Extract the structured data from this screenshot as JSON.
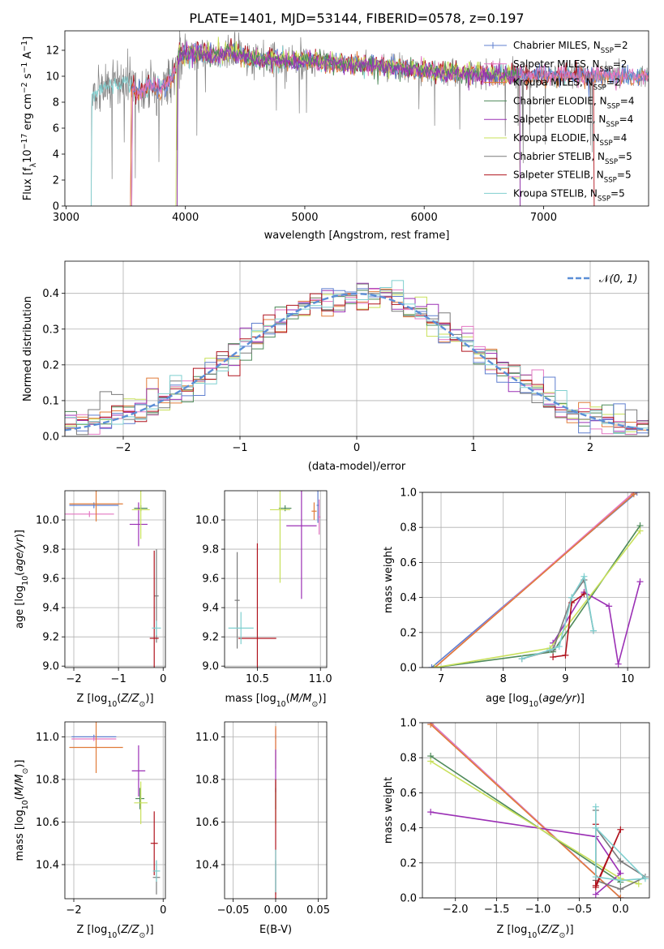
{
  "figure_title": "PLATE=1401, MJD=53144, FIBERID=0578, z=0.197",
  "colors": {
    "Chabrier MILES": "#5f7fcf",
    "Salpeter MILES": "#e377c2",
    "Kroupa MILES": "#e07b39",
    "Chabrier ELODIE": "#4e8a5a",
    "Salpeter ELODIE": "#9b30b5",
    "Kroupa ELODIE": "#c8e05a",
    "Chabrier STELIB": "#7a7a7a",
    "Salpeter STELIB": "#b0141e",
    "Kroupa STELIB": "#7fcfcf"
  },
  "chart_data": [
    {
      "id": "spectrum",
      "type": "line",
      "title": "PLATE=1401, MJD=53144, FIBERID=0578, z=0.197",
      "xlabel": "wavelength [Angstrom, rest frame]",
      "ylabel": "Flux [f_λ10^-17 erg cm^-2 s^-1 A^-1]",
      "xlim": [
        2990,
        7880
      ],
      "ylim": [
        0,
        13.5
      ],
      "xticks": [
        3000,
        4000,
        5000,
        6000,
        7000
      ],
      "yticks": [
        0,
        2,
        4,
        6,
        8,
        10,
        12
      ],
      "grid": false,
      "legend": "upper right",
      "legend_entries": [
        {
          "name": "Chabrier MILES",
          "nssp": "2"
        },
        {
          "name": "Salpeter MILES",
          "nssp": "2"
        },
        {
          "name": "Kroupa MILES",
          "nssp": "2"
        },
        {
          "name": "Chabrier ELODIE",
          "nssp": "4"
        },
        {
          "name": "Salpeter ELODIE",
          "nssp": "4"
        },
        {
          "name": "Kroupa ELODIE",
          "nssp": "4"
        },
        {
          "name": "Chabrier STELIB",
          "nssp": "5"
        },
        {
          "name": "Salpeter STELIB",
          "nssp": "5"
        },
        {
          "name": "Kroupa STELIB",
          "nssp": "5"
        }
      ],
      "data_envelope": {
        "x": [
          3200,
          3220,
          3300,
          3400,
          3500,
          3600,
          3700,
          3800,
          3900,
          3950,
          4000,
          4100,
          4200,
          4400,
          4600,
          4800,
          5000,
          5200,
          5500,
          6000,
          6500,
          7000,
          7400
        ],
        "y": [
          7.0,
          8.8,
          9.2,
          9.2,
          9.6,
          8.6,
          9.2,
          9.0,
          10.0,
          11.8,
          11.6,
          11.8,
          11.6,
          11.8,
          11.3,
          11.2,
          11.2,
          11.0,
          10.9,
          10.4,
          10.1,
          10.0,
          10.0
        ]
      },
      "model_cutoffs": [
        {
          "series": "MILES",
          "start": 3540
        },
        {
          "series": "ELODIE",
          "start": 3920
        },
        {
          "series": "STELIB",
          "start": 3210,
          "end": 7420
        }
      ]
    },
    {
      "id": "residuals",
      "type": "step",
      "xlabel": "(data-model)/error",
      "ylabel": "Normed distribution",
      "xlim": [
        -2.5,
        2.5
      ],
      "ylim": [
        0,
        0.49
      ],
      "xticks": [
        -2,
        -1,
        0,
        1,
        2
      ],
      "yticks": [
        0.0,
        0.1,
        0.2,
        0.3,
        0.4
      ],
      "grid": true,
      "legend": "upper right",
      "legend_entries": [
        {
          "name": "N(0,1)",
          "style": "dashed"
        }
      ],
      "gaussian": {
        "mean": 0,
        "sigma": 1
      }
    },
    {
      "id": "age_vs_Z",
      "type": "errorbar",
      "xlabel": "Z [log10(Z/Z⊙)]",
      "ylabel": "age [log10(age/yr)]",
      "xlim": [
        -2.2,
        0.05
      ],
      "ylim": [
        8.99,
        10.2
      ],
      "xticks": [
        -2,
        -1,
        0
      ],
      "yticks": [
        9.0,
        9.2,
        9.4,
        9.6,
        9.8,
        10.0
      ],
      "grid": true,
      "series": [
        {
          "name": "Chabrier MILES",
          "x": -1.55,
          "xerr": 0.55,
          "y": 10.1,
          "yerr": 0.02
        },
        {
          "name": "Salpeter MILES",
          "x": -1.65,
          "xerr": 0.55,
          "y": 10.04,
          "yerr": 0.02
        },
        {
          "name": "Kroupa MILES",
          "x": -1.5,
          "xerr": 0.6,
          "y": 10.11,
          "yerr": 0.12
        },
        {
          "name": "Chabrier ELODIE",
          "x": -0.5,
          "xerr": 0.15,
          "y": 10.08,
          "yerr": 0.02
        },
        {
          "name": "Salpeter ELODIE",
          "x": -0.55,
          "xerr": 0.2,
          "y": 9.97,
          "yerr": 0.15
        },
        {
          "name": "Kroupa ELODIE",
          "x": -0.5,
          "xerr": 0.2,
          "y": 10.07,
          "yerr": 0.2
        },
        {
          "name": "Chabrier STELIB",
          "x": -0.15,
          "xerr": 0.05,
          "y": 9.48,
          "yerr": 0.32
        },
        {
          "name": "Salpeter STELIB",
          "x": -0.2,
          "xerr": 0.1,
          "y": 9.19,
          "yerr": 0.6
        },
        {
          "name": "Kroupa STELIB",
          "x": -0.15,
          "xerr": 0.1,
          "y": 9.26,
          "yerr": 0.05
        }
      ]
    },
    {
      "id": "age_vs_mass",
      "type": "errorbar",
      "xlabel": "mass [log10(M/M⊙)]",
      "xlim": [
        10.24,
        11.05
      ],
      "ylim": [
        8.99,
        10.2
      ],
      "xticks": [
        10.5,
        11.0
      ],
      "yticks": [
        9.0,
        9.2,
        9.4,
        9.6,
        9.8,
        10.0
      ],
      "grid": true,
      "series": [
        {
          "name": "Chabrier MILES",
          "x": 10.98,
          "xerr": 0.01,
          "y": 10.1,
          "yerr": 0.12
        },
        {
          "name": "Salpeter MILES",
          "x": 10.99,
          "xerr": 0.01,
          "y": 10.02,
          "yerr": 0.12
        },
        {
          "name": "Kroupa MILES",
          "x": 10.95,
          "xerr": 0.02,
          "y": 10.06,
          "yerr": 0.06
        },
        {
          "name": "Chabrier ELODIE",
          "x": 10.72,
          "xerr": 0.05,
          "y": 10.08,
          "yerr": 0.02
        },
        {
          "name": "Salpeter ELODIE",
          "x": 10.85,
          "xerr": 0.12,
          "y": 9.96,
          "yerr": 0.5
        },
        {
          "name": "Kroupa ELODIE",
          "x": 10.68,
          "xerr": 0.08,
          "y": 10.07,
          "yerr": 0.5
        },
        {
          "name": "Chabrier STELIB",
          "x": 10.34,
          "xerr": 0.02,
          "y": 9.45,
          "yerr": 0.33
        },
        {
          "name": "Salpeter STELIB",
          "x": 10.5,
          "xerr": 0.15,
          "y": 9.19,
          "yerr": 0.65
        },
        {
          "name": "Kroupa STELIB",
          "x": 10.37,
          "xerr": 0.1,
          "y": 9.26,
          "yerr": 0.11
        }
      ]
    },
    {
      "id": "mass_weight_vs_age",
      "type": "line",
      "xlabel": "age [log10(age/yr)]",
      "ylabel": "mass weight",
      "xlim": [
        6.7,
        10.35
      ],
      "ylim": [
        0,
        1.0
      ],
      "xticks": [
        7,
        8,
        9,
        10
      ],
      "yticks": [
        0.0,
        0.2,
        0.4,
        0.6,
        0.8,
        1.0
      ],
      "grid": true,
      "series": [
        {
          "name": "Chabrier MILES",
          "x": [
            6.85,
            10.15
          ],
          "y": [
            0.0,
            1.0
          ]
        },
        {
          "name": "Salpeter MILES",
          "x": [
            6.9,
            10.1
          ],
          "y": [
            0.0,
            1.0
          ]
        },
        {
          "name": "Kroupa MILES",
          "x": [
            6.9,
            10.1
          ],
          "y": [
            0.0,
            0.99
          ]
        },
        {
          "name": "Chabrier ELODIE",
          "x": [
            6.9,
            8.8,
            10.2
          ],
          "y": [
            0.0,
            0.09,
            0.81
          ]
        },
        {
          "name": "Salpeter ELODIE",
          "x": [
            8.8,
            9.3,
            9.7,
            9.85,
            10.2
          ],
          "y": [
            0.14,
            0.43,
            0.35,
            0.02,
            0.49
          ]
        },
        {
          "name": "Kroupa ELODIE",
          "x": [
            6.9,
            8.75,
            10.2
          ],
          "y": [
            0.0,
            0.11,
            0.78
          ]
        },
        {
          "name": "Chabrier STELIB",
          "x": [
            8.3,
            8.8,
            9.1,
            9.3,
            9.45
          ],
          "y": [
            0.05,
            0.1,
            0.4,
            0.5,
            0.21
          ]
        },
        {
          "name": "Salpeter STELIB",
          "x": [
            8.8,
            9.0,
            9.1,
            9.3
          ],
          "y": [
            0.06,
            0.07,
            0.37,
            0.42
          ]
        },
        {
          "name": "Kroupa STELIB",
          "x": [
            8.3,
            8.75,
            8.9,
            9.1,
            9.3,
            9.45
          ],
          "y": [
            0.05,
            0.1,
            0.12,
            0.4,
            0.52,
            0.21
          ]
        }
      ]
    },
    {
      "id": "mass_vs_Z",
      "type": "errorbar",
      "xlabel": "Z [log10(Z/Z⊙)]",
      "ylabel": "mass [log10(M/M⊙)]",
      "xlim": [
        -2.2,
        0.05
      ],
      "ylim": [
        10.24,
        11.07
      ],
      "xticks": [
        -2,
        0
      ],
      "yticks": [
        10.4,
        10.6,
        10.8,
        11.0
      ],
      "grid": true,
      "series": [
        {
          "name": "Chabrier MILES",
          "x": -1.55,
          "xerr": 0.5,
          "y": 11.0,
          "yerr": 0.01
        },
        {
          "name": "Salpeter MILES",
          "x": -1.55,
          "xerr": 0.5,
          "y": 10.99,
          "yerr": 0.01
        },
        {
          "name": "Kroupa MILES",
          "x": -1.5,
          "xerr": 0.6,
          "y": 10.95,
          "yerr": 0.12
        },
        {
          "name": "Chabrier ELODIE",
          "x": -0.52,
          "xerr": 0.1,
          "y": 10.71,
          "yerr": 0.05
        },
        {
          "name": "Salpeter ELODIE",
          "x": -0.55,
          "xerr": 0.15,
          "y": 10.84,
          "yerr": 0.12
        },
        {
          "name": "Kroupa ELODIE",
          "x": -0.5,
          "xerr": 0.15,
          "y": 10.69,
          "yerr": 0.1
        },
        {
          "name": "Chabrier STELIB",
          "x": -0.15,
          "xerr": 0.08,
          "y": 10.34,
          "yerr": 0.08
        },
        {
          "name": "Salpeter STELIB",
          "x": -0.2,
          "xerr": 0.08,
          "y": 10.5,
          "yerr": 0.15
        },
        {
          "name": "Kroupa STELIB",
          "x": -0.15,
          "xerr": 0.08,
          "y": 10.37,
          "yerr": 0.05
        }
      ]
    },
    {
      "id": "mass_vs_ebv",
      "type": "errorbar",
      "xlabel": "E(B-V)",
      "xlim": [
        -0.06,
        0.06
      ],
      "ylim": [
        10.24,
        11.07
      ],
      "xticks": [
        -0.05,
        0.0,
        0.05
      ],
      "yticks": [
        10.4,
        10.6,
        10.8,
        11.0
      ],
      "grid": true,
      "series": [
        {
          "name": "Chabrier MILES",
          "x": 0.0,
          "y": 11.0,
          "yerr": 0.01
        },
        {
          "name": "Salpeter MILES",
          "x": 0.0,
          "y": 10.99,
          "yerr": 0.05
        },
        {
          "name": "Kroupa MILES",
          "x": 0.0,
          "y": 10.95,
          "yerr": 0.1
        },
        {
          "name": "Chabrier ELODIE",
          "x": 0.0,
          "y": 10.71,
          "yerr": 0.05
        },
        {
          "name": "Salpeter ELODIE",
          "x": 0.0,
          "y": 10.84,
          "yerr": 0.1
        },
        {
          "name": "Kroupa ELODIE",
          "x": 0.0,
          "y": 10.69,
          "yerr": 0.1
        },
        {
          "name": "Chabrier STELIB",
          "x": 0.0,
          "y": 10.34,
          "yerr": 0.08
        },
        {
          "name": "Salpeter STELIB",
          "x": 0.0,
          "y": 10.5,
          "yerr": 0.3
        },
        {
          "name": "Kroupa STELIB",
          "x": 0.0,
          "y": 10.37,
          "yerr": 0.1
        }
      ]
    },
    {
      "id": "mass_weight_vs_Z",
      "type": "line",
      "xlabel": "Z [log10(Z/Z⊙)]",
      "ylabel": "mass weight",
      "xlim": [
        -2.4,
        0.35
      ],
      "ylim": [
        0,
        1.0
      ],
      "xticks": [
        -2.0,
        -1.5,
        -1.0,
        -0.5,
        0.0
      ],
      "yticks": [
        0.0,
        0.2,
        0.4,
        0.6,
        0.8,
        1.0
      ],
      "grid": true,
      "series": [
        {
          "name": "Chabrier MILES",
          "x": [
            -2.3,
            0.0
          ],
          "y": [
            1.0,
            0.0
          ]
        },
        {
          "name": "Salpeter MILES",
          "x": [
            -2.3,
            0.0
          ],
          "y": [
            1.0,
            0.0
          ]
        },
        {
          "name": "Kroupa MILES",
          "x": [
            -2.3,
            0.0
          ],
          "y": [
            0.99,
            0.0
          ]
        },
        {
          "name": "Chabrier ELODIE",
          "x": [
            -2.3,
            0.0
          ],
          "y": [
            0.81,
            0.09
          ]
        },
        {
          "name": "Salpeter ELODIE",
          "x": [
            -2.3,
            -0.3,
            0.0,
            -0.3
          ],
          "y": [
            0.49,
            0.35,
            0.14,
            0.02
          ]
        },
        {
          "name": "Kroupa ELODIE",
          "x": [
            -2.3,
            0.0,
            0.22
          ],
          "y": [
            0.78,
            0.11,
            0.08
          ]
        },
        {
          "name": "Chabrier STELIB",
          "x": [
            -0.3,
            -0.3,
            0.0,
            0.3,
            0.0,
            -0.3
          ],
          "y": [
            0.5,
            0.1,
            0.05,
            0.12,
            0.21,
            0.4
          ]
        },
        {
          "name": "Salpeter STELIB",
          "x": [
            -0.3,
            -0.3,
            0.0,
            -0.3
          ],
          "y": [
            0.42,
            0.06,
            0.39,
            0.07
          ]
        },
        {
          "name": "Kroupa STELIB",
          "x": [
            -0.3,
            -0.3,
            0.0,
            0.3,
            -0.3
          ],
          "y": [
            0.52,
            0.12,
            0.1,
            0.11,
            0.4
          ]
        }
      ]
    }
  ]
}
